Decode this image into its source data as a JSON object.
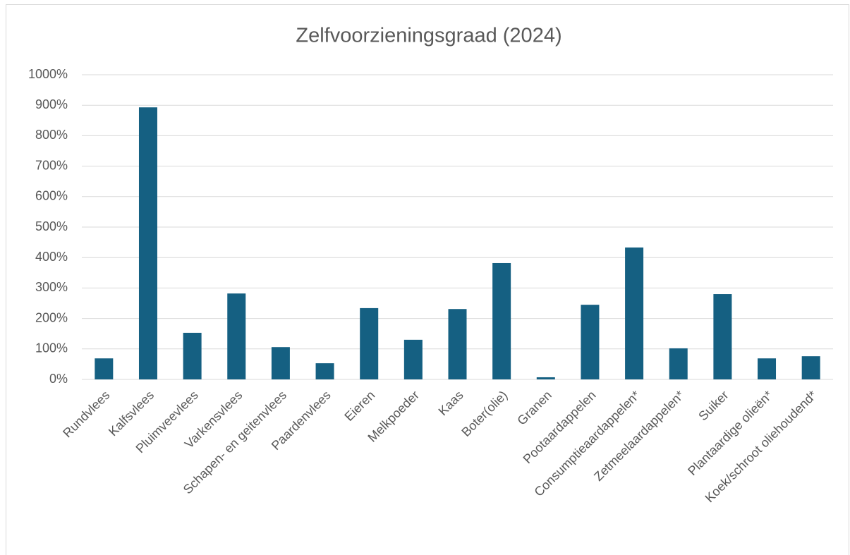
{
  "chart_data": {
    "type": "bar",
    "title": "Zelfvoorzieningsgraad (2024)",
    "categories": [
      "Rundvlees",
      "Kalfsvlees",
      "Pluimveevlees",
      "Varkensvlees",
      "Schapen- en geitenvlees",
      "Paardenvlees",
      "Eieren",
      "Melkpoeder",
      "Kaas",
      "Boter(olie)",
      "Granen",
      "Pootaardappelen",
      "Consumptieaardappelen*",
      "Zetmeelaardappelen*",
      "Suiker",
      "Plantaardige olieën*",
      "Koek/schroot oliehoudend*"
    ],
    "values": [
      69,
      893,
      153,
      282,
      106,
      53,
      234,
      130,
      231,
      382,
      7,
      245,
      433,
      102,
      280,
      69,
      76
    ],
    "color": "#156082",
    "ylim": [
      0,
      1000
    ],
    "yticks": [
      {
        "value": 0,
        "label": "0%"
      },
      {
        "value": 100,
        "label": "100%"
      },
      {
        "value": 200,
        "label": "200%"
      },
      {
        "value": 300,
        "label": "300%"
      },
      {
        "value": 400,
        "label": "400%"
      },
      {
        "value": 500,
        "label": "500%"
      },
      {
        "value": 600,
        "label": "600%"
      },
      {
        "value": 700,
        "label": "700%"
      },
      {
        "value": 800,
        "label": "800%"
      },
      {
        "value": 900,
        "label": "900%"
      },
      {
        "value": 1000,
        "label": "1000%"
      }
    ],
    "grid": true
  }
}
